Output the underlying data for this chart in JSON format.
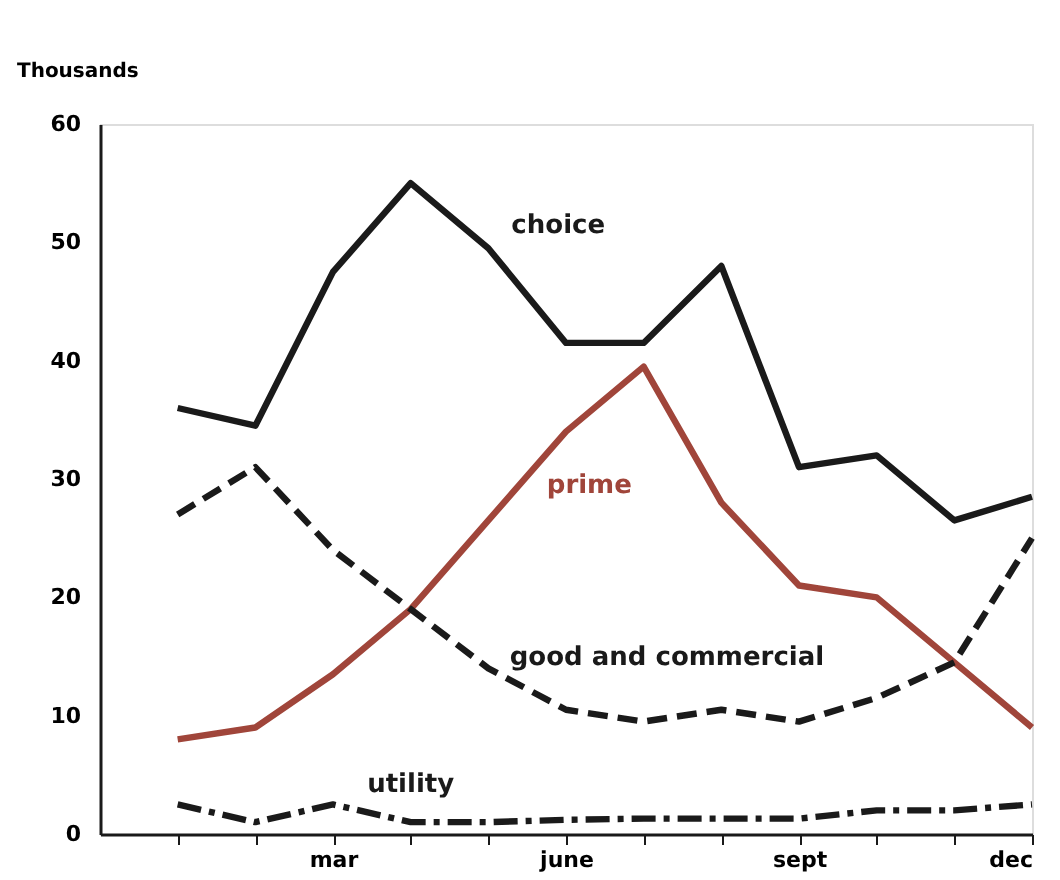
{
  "chart_data": {
    "type": "line",
    "ylabel": "Thousands",
    "categories": [
      null,
      null,
      "mar",
      null,
      null,
      "june",
      null,
      null,
      "sept",
      null,
      null,
      "dec"
    ],
    "series": [
      {
        "name": "choice",
        "color": "#1a1a1a",
        "line_style": "solid",
        "values": [
          36,
          34.5,
          47.5,
          55,
          49.5,
          41.5,
          41.5,
          48,
          31,
          32,
          26.5,
          28.5
        ]
      },
      {
        "name": "prime",
        "color": "#a0453a",
        "line_style": "solid",
        "values": [
          8,
          9,
          13.5,
          19,
          26.5,
          34,
          39.5,
          28,
          21,
          20,
          14.5,
          9
        ]
      },
      {
        "name": "good and commercial",
        "color": "#1a1a1a",
        "line_style": "dashed",
        "values": [
          27,
          31,
          24,
          19,
          14,
          10.5,
          9.5,
          10.5,
          9.5,
          11.5,
          14.5,
          25
        ]
      },
      {
        "name": "utility",
        "color": "#1a1a1a",
        "line_style": "dashdot",
        "values": [
          2.5,
          1,
          2.5,
          1,
          1,
          1.2,
          1.3,
          1.3,
          1.3,
          2,
          2,
          2.5
        ]
      }
    ],
    "ylim": [
      0,
      60
    ],
    "yticks": [
      0,
      10,
      20,
      30,
      40,
      50,
      60
    ],
    "grid": false,
    "marker": "none"
  }
}
